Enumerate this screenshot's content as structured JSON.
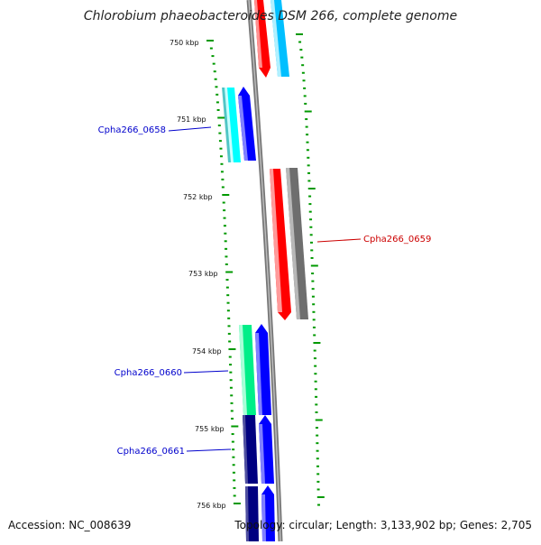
{
  "title": "Chlorobium phaeobacteroides DSM 266, complete genome",
  "footer": {
    "accession": "Accession: NC_008639",
    "topology": "Topology: circular; Length: 3,133,902 bp; Genes: 2,705"
  },
  "ruler": {
    "labels": [
      "750 kbp",
      "751 kbp",
      "752 kbp",
      "753 kbp",
      "754 kbp",
      "755 kbp",
      "756 kbp"
    ]
  },
  "gene_labels": [
    {
      "text": "Cpha266_0658",
      "color": "#0000cc"
    },
    {
      "text": "Cpha266_0659",
      "color": "#cc0000"
    },
    {
      "text": "Cpha266_0660",
      "color": "#0000cc"
    },
    {
      "text": "Cpha266_0661",
      "color": "#0000cc"
    }
  ],
  "colors": {
    "forward_strand": "#0000ff",
    "reverse_strand": "#ff0000",
    "forward_feature_a": "#00ffff",
    "forward_feature_b": "#00ff99",
    "forward_feature_dark": "#000080",
    "reverse_feature_a": "#00bfff",
    "reverse_feature_b": "#707070",
    "backbone": "#888888",
    "tick": "#009900"
  }
}
